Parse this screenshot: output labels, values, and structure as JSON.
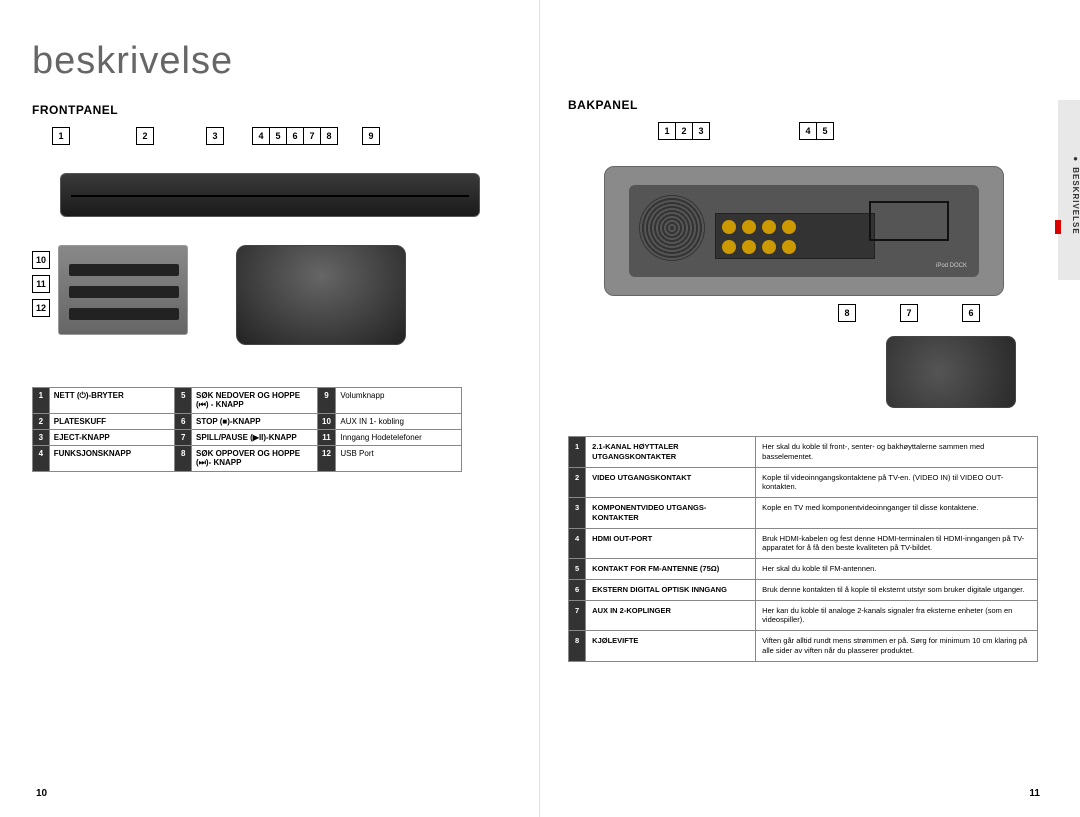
{
  "main_title": "beskrivelse",
  "front_section_title": "FRONTPANEL",
  "back_section_title": "BAKPANEL",
  "side_tab_label": "BESKRIVELSE",
  "side_tab_letter": "N",
  "page_num_left": "10",
  "page_num_right": "11",
  "front_callouts_top": [
    "1",
    "2",
    "3",
    "4",
    "5",
    "6",
    "7",
    "8",
    "9"
  ],
  "front_callouts_side": [
    "10",
    "11",
    "12"
  ],
  "back_callouts_top_a": [
    "1",
    "2",
    "3"
  ],
  "back_callouts_top_b": [
    "4",
    "5"
  ],
  "back_callouts_bottom": [
    "8",
    "7",
    "6"
  ],
  "back_label_inset": "iPod DOCK",
  "front_legend": [
    {
      "n": "1",
      "a": "NETT (⏻)-BRYTER",
      "n2": "5",
      "b": "SØK NEDOVER OG HOPPE (⏮) - KNAPP",
      "n3": "9",
      "c": "Volumknapp"
    },
    {
      "n": "2",
      "a": "PLATESKUFF",
      "n2": "6",
      "b": "STOP (■)-KNAPP",
      "n3": "10",
      "c": "AUX IN 1- kobling"
    },
    {
      "n": "3",
      "a": "EJECT-KNAPP",
      "n2": "7",
      "b": "SPILL/PAUSE (▶II)-KNAPP",
      "n3": "11",
      "c": "Inngang Hodetelefoner"
    },
    {
      "n": "4",
      "a": "FUNKSJONSKNAPP",
      "n2": "8",
      "b": "SØK OPPOVER OG HOPPE (⏭)- KNAPP",
      "n3": "12",
      "c": "USB Port"
    }
  ],
  "back_legend": [
    {
      "n": "1",
      "name": "2.1-KANAL HØYTTALER UTGANGSKONTAKTER",
      "desc": "Her skal du koble til front-, senter- og bakhøyttalerne sammen med basselementet."
    },
    {
      "n": "2",
      "name": "VIDEO UTGANGSKONTAKT",
      "desc": "Kople til videoinngangskontaktene på TV-en. (VIDEO IN) til VIDEO OUT- kontakten."
    },
    {
      "n": "3",
      "name": "KOMPONENTVIDEO UTGANGS-KONTAKTER",
      "desc": "Kople en TV med komponentvideoinnganger til disse kontaktene."
    },
    {
      "n": "4",
      "name": "HDMI OUT-PORT",
      "desc": "Bruk HDMI-kabelen og fest denne HDMI-terminalen til HDMI-inngangen på TV-apparatet for å få den beste kvaliteten på TV-bildet."
    },
    {
      "n": "5",
      "name": "KONTAKT FOR FM-ANTENNE (75Ω)",
      "desc": "Her skal du koble til FM-antennen."
    },
    {
      "n": "6",
      "name": "EKSTERN DIGITAL OPTISK INNGANG",
      "desc": "Bruk denne kontakten til å kople til eksternt utstyr som bruker digitale utganger."
    },
    {
      "n": "7",
      "name": "AUX IN 2-KOPLINGER",
      "desc": "Her kan du koble til analoge 2-kanals signaler fra eksterne enheter (som en videospiller)."
    },
    {
      "n": "8",
      "name": "KJØLEVIFTE",
      "desc": "Viften går alltid rundt mens strømmen er på. Sørg for minimum 10 cm klaring på alle sider av viften når du plasserer produktet."
    }
  ],
  "style": {
    "page_bg": "#ffffff",
    "title_color": "#666666",
    "border_color": "#888888",
    "numcell_bg": "#333333",
    "numcell_fg": "#ffffff"
  }
}
